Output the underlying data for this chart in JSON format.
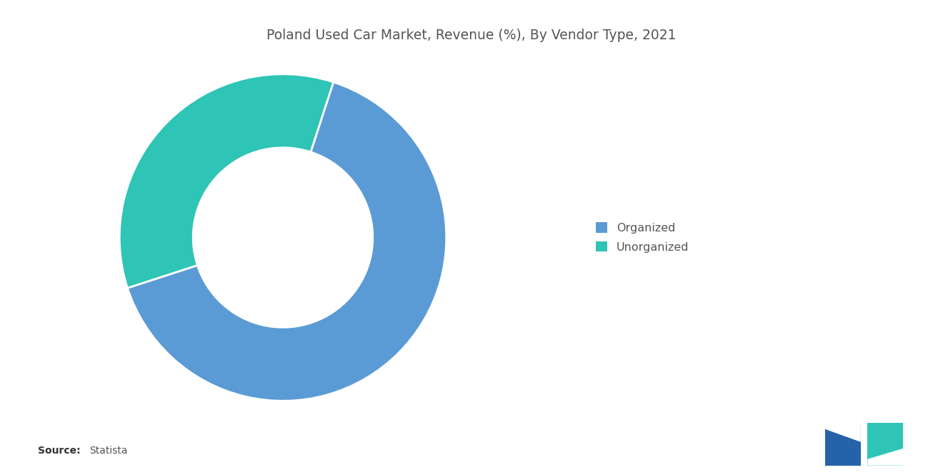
{
  "title": "Poland Used Car Market, Revenue (%), By Vendor Type, 2021",
  "slices": [
    {
      "label": "Organized",
      "value": 65,
      "color": "#5B9BD5"
    },
    {
      "label": "Unorganized",
      "value": 35,
      "color": "#2EC4B6"
    }
  ],
  "background_color": "#ffffff",
  "title_fontsize": 13.5,
  "title_color": "#555555",
  "legend_fontsize": 11.5,
  "source_bold": "Source:",
  "source_normal": "Statista",
  "donut_width": 0.45,
  "start_angle": 198,
  "counterclock": true,
  "logo_blue": "#2563A8",
  "logo_teal": "#2EC4B6"
}
